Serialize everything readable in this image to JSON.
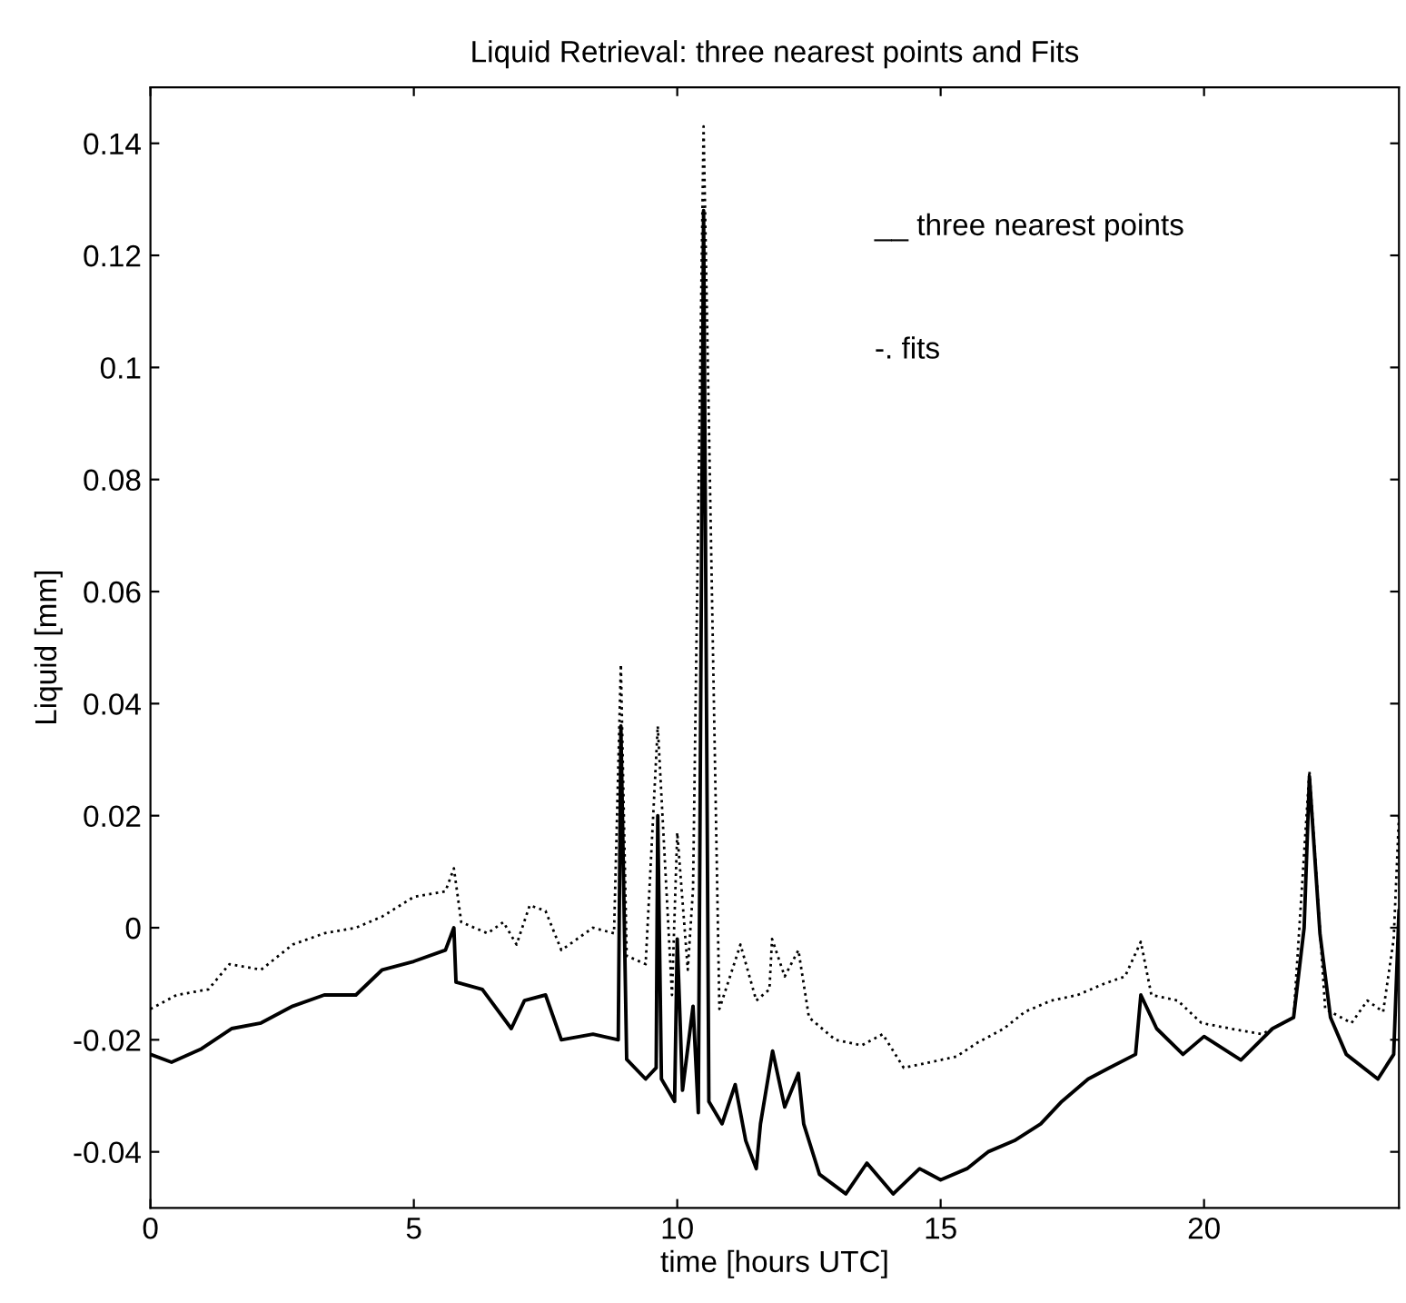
{
  "chart_data": {
    "type": "line",
    "title": "Liquid Retrieval: three nearest points and Fits",
    "xlabel": "time [hours UTC]",
    "ylabel": "Liquid [mm]",
    "annotations": [
      "__ three nearest points",
      "-. fits"
    ],
    "xlim": [
      0,
      23.7
    ],
    "ylim": [
      -0.05,
      0.15
    ],
    "xticks": [
      0,
      5,
      10,
      15,
      20
    ],
    "yticks": [
      -0.04,
      -0.02,
      0,
      0.02,
      0.04,
      0.06,
      0.08,
      0.1,
      0.12,
      0.14
    ],
    "grid": false,
    "legend": false,
    "series": [
      {
        "color": "#000000",
        "line_style": "solid",
        "x": [
          0,
          0.4,
          0.97,
          1.54,
          2.1,
          2.7,
          3.3,
          3.9,
          4.4,
          5.0,
          5.6,
          5.76,
          5.8,
          6.3,
          6.85,
          7.1,
          7.5,
          7.8,
          8.4,
          8.88,
          8.93,
          9.04,
          9.4,
          9.6,
          9.63,
          9.7,
          9.95,
          10.0,
          10.1,
          10.3,
          10.4,
          10.5,
          10.6,
          10.85,
          11.1,
          11.3,
          11.5,
          11.58,
          11.81,
          12.04,
          12.3,
          12.4,
          12.7,
          13.2,
          13.6,
          14.1,
          14.6,
          15.0,
          15.5,
          15.9,
          16.4,
          16.9,
          17.3,
          17.8,
          18.2,
          18.7,
          18.8,
          19.1,
          19.6,
          20.0,
          20.7,
          21.3,
          21.7,
          21.9,
          22.0,
          22.2,
          22.4,
          22.7,
          23.3,
          23.6,
          23.7
        ],
        "values": [
          -0.0226,
          -0.024,
          -0.0216,
          -0.018,
          -0.017,
          -0.014,
          -0.012,
          -0.012,
          -0.0075,
          -0.006,
          -0.004,
          0.0,
          -0.0097,
          -0.011,
          -0.018,
          -0.013,
          -0.012,
          -0.02,
          -0.019,
          -0.02,
          0.036,
          -0.0235,
          -0.027,
          -0.025,
          0.02,
          -0.027,
          -0.031,
          -0.002,
          -0.029,
          -0.014,
          -0.033,
          0.128,
          -0.031,
          -0.035,
          -0.028,
          -0.038,
          -0.043,
          -0.035,
          -0.022,
          -0.032,
          -0.026,
          -0.035,
          -0.044,
          -0.0475,
          -0.042,
          -0.0475,
          -0.043,
          -0.045,
          -0.043,
          -0.04,
          -0.038,
          -0.035,
          -0.031,
          -0.027,
          -0.025,
          -0.0226,
          -0.012,
          -0.018,
          -0.0226,
          -0.0194,
          -0.0236,
          -0.018,
          -0.016,
          0.0,
          0.027,
          -0.001,
          -0.016,
          -0.0226,
          -0.027,
          -0.0226,
          0.003
        ]
      },
      {
        "color": "#000000",
        "line_style": "dotted",
        "x": [
          0,
          0.5,
          1.1,
          1.5,
          2.1,
          2.7,
          3.3,
          3.9,
          4.4,
          5.0,
          5.6,
          5.76,
          5.9,
          6.4,
          6.7,
          6.95,
          7.2,
          7.5,
          7.8,
          8.4,
          8.8,
          8.93,
          9.04,
          9.4,
          9.63,
          9.9,
          10.0,
          10.2,
          10.3,
          10.5,
          10.8,
          11.2,
          11.5,
          11.75,
          11.8,
          12.04,
          12.3,
          12.5,
          13.0,
          13.5,
          13.9,
          14.3,
          14.8,
          15.3,
          15.7,
          16.2,
          16.6,
          17.1,
          17.6,
          18.1,
          18.5,
          18.8,
          19.0,
          19.5,
          19.95,
          20.5,
          21.1,
          21.7,
          22.0,
          22.3,
          22.8,
          23.1,
          23.4,
          23.6,
          23.7
        ],
        "values": [
          -0.0145,
          -0.012,
          -0.011,
          -0.0065,
          -0.0075,
          -0.003,
          -0.001,
          0.0,
          0.002,
          0.0055,
          0.0065,
          0.0106,
          0.001,
          -0.001,
          0.001,
          -0.003,
          0.004,
          0.003,
          -0.004,
          0.0,
          -0.001,
          0.047,
          -0.005,
          -0.0065,
          0.036,
          -0.012,
          0.017,
          -0.0075,
          0.007,
          0.143,
          -0.0145,
          -0.003,
          -0.013,
          -0.011,
          -0.002,
          -0.0087,
          -0.004,
          -0.016,
          -0.02,
          -0.021,
          -0.019,
          -0.025,
          -0.024,
          -0.023,
          -0.0205,
          -0.018,
          -0.015,
          -0.013,
          -0.012,
          -0.01,
          -0.0087,
          -0.0025,
          -0.012,
          -0.013,
          -0.017,
          -0.018,
          -0.019,
          -0.016,
          0.028,
          -0.0145,
          -0.017,
          -0.013,
          -0.015,
          -0.002,
          0.02
        ]
      }
    ]
  }
}
